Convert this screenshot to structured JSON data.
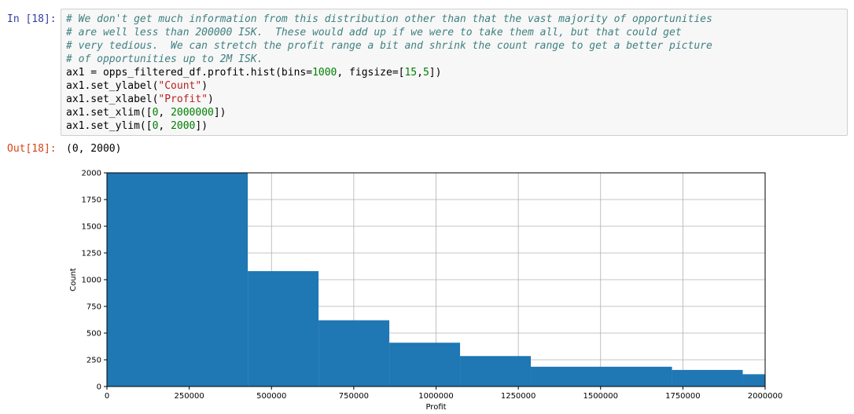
{
  "cell": {
    "in_prompt": "In [18]:",
    "out_prompt": "Out[18]:",
    "output_text": "(0, 2000)",
    "code_lines": [
      [
        {
          "t": "# We don't get much information from this distribution other than that the vast majority of opportunities",
          "k": "comment"
        }
      ],
      [
        {
          "t": "# are well less than 200000 ISK.  These would add up if we were to take them all, but that could get",
          "k": "comment"
        }
      ],
      [
        {
          "t": "# very tedious.  We can stretch the profit range a bit and shrink the count range to get a better picture",
          "k": "comment"
        }
      ],
      [
        {
          "t": "# of opportunities up to 2M ISK.",
          "k": "comment"
        }
      ],
      [
        {
          "t": "ax1 = opps_filtered_df.profit.hist(bins=",
          "k": ""
        },
        {
          "t": "1000",
          "k": "num"
        },
        {
          "t": ", figsize=[",
          "k": ""
        },
        {
          "t": "15",
          "k": "num"
        },
        {
          "t": ",",
          "k": ""
        },
        {
          "t": "5",
          "k": "num"
        },
        {
          "t": "])",
          "k": ""
        }
      ],
      [
        {
          "t": "ax1.set_ylabel(",
          "k": ""
        },
        {
          "t": "\"Count\"",
          "k": "str"
        },
        {
          "t": ")",
          "k": ""
        }
      ],
      [
        {
          "t": "ax1.set_xlabel(",
          "k": ""
        },
        {
          "t": "\"Profit\"",
          "k": "str"
        },
        {
          "t": ")",
          "k": ""
        }
      ],
      [
        {
          "t": "ax1.set_xlim([",
          "k": ""
        },
        {
          "t": "0",
          "k": "num"
        },
        {
          "t": ", ",
          "k": ""
        },
        {
          "t": "2000000",
          "k": "num"
        },
        {
          "t": "])",
          "k": ""
        }
      ],
      [
        {
          "t": "ax1.set_ylim([",
          "k": ""
        },
        {
          "t": "0",
          "k": "num"
        },
        {
          "t": ", ",
          "k": ""
        },
        {
          "t": "2000",
          "k": "num"
        },
        {
          "t": "])",
          "k": ""
        }
      ]
    ]
  },
  "colors": {
    "bar": "#1f77b4",
    "comment": "#408080",
    "string": "#ba2121",
    "number": "#008000",
    "in_prompt": "#303f9f",
    "out_prompt": "#d84315"
  },
  "chart_data": {
    "type": "bar",
    "title": "",
    "xlabel": "Profit",
    "ylabel": "Count",
    "xlim": [
      0,
      2000000
    ],
    "ylim": [
      0,
      2000
    ],
    "grid": true,
    "xticks": [
      0,
      250000,
      500000,
      750000,
      1000000,
      1250000,
      1500000,
      1750000,
      2000000
    ],
    "xtick_labels": [
      "0",
      "250000",
      "500000",
      "750000",
      "1000000",
      "1250000",
      "1500000",
      "1750000",
      "2000000"
    ],
    "yticks": [
      0,
      250,
      500,
      750,
      1000,
      1250,
      1500,
      1750,
      2000
    ],
    "ytick_labels": [
      "0",
      "250",
      "500",
      "750",
      "1000",
      "1250",
      "1500",
      "1750",
      "2000"
    ],
    "bins": [
      {
        "x0": 0,
        "x1": 428000,
        "count": 2000
      },
      {
        "x0": 428000,
        "x1": 643000,
        "count": 1080
      },
      {
        "x0": 643000,
        "x1": 858000,
        "count": 620
      },
      {
        "x0": 858000,
        "x1": 1073000,
        "count": 410
      },
      {
        "x0": 1073000,
        "x1": 1288000,
        "count": 285
      },
      {
        "x0": 1288000,
        "x1": 1717000,
        "count": 185
      },
      {
        "x0": 1717000,
        "x1": 1932000,
        "count": 155
      },
      {
        "x0": 1932000,
        "x1": 2000000,
        "count": 115
      }
    ]
  }
}
